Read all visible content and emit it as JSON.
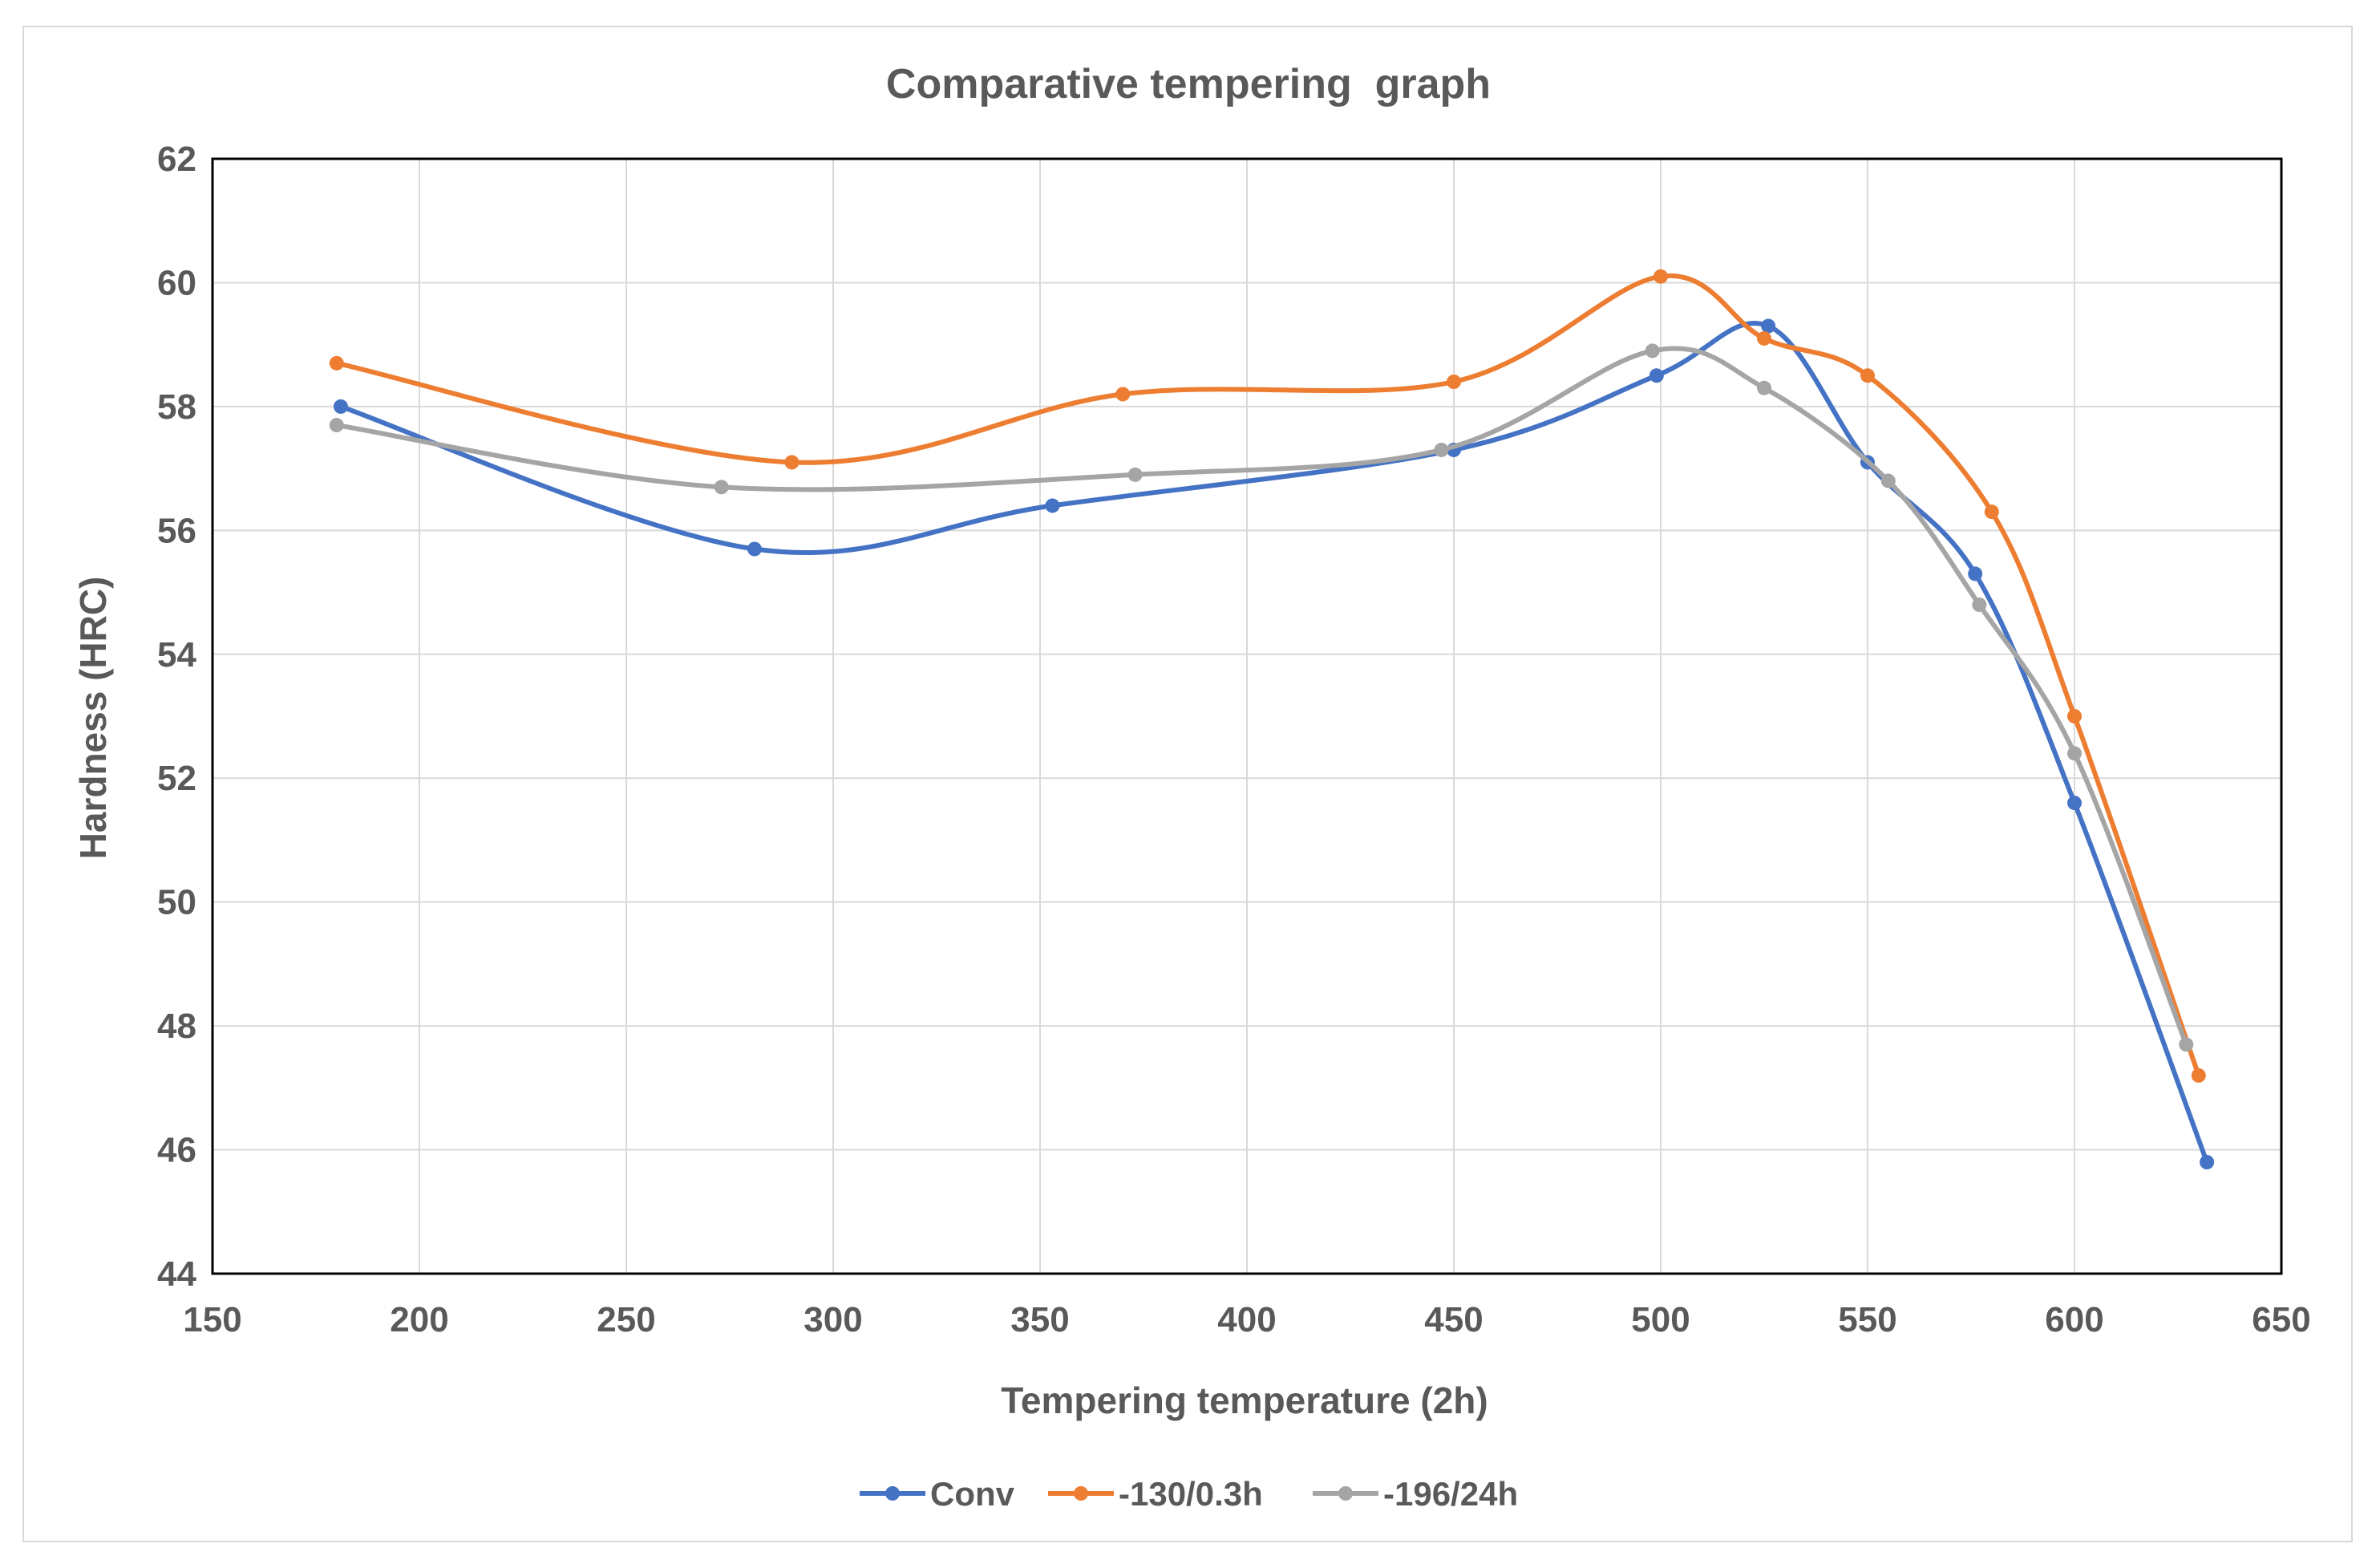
{
  "chart_data": {
    "type": "line",
    "title": "Comparative tempering  graph",
    "xlabel": "Tempering temperature (2h)",
    "ylabel": "Hardness (HRC)",
    "xlim": [
      150,
      650
    ],
    "ylim": [
      44,
      62
    ],
    "xticks": [
      150,
      200,
      250,
      300,
      350,
      400,
      450,
      500,
      550,
      600,
      650
    ],
    "yticks": [
      44,
      46,
      48,
      50,
      52,
      54,
      56,
      58,
      60,
      62
    ],
    "grid": true,
    "legend_position": "bottom",
    "smooth": true,
    "series": [
      {
        "name": "Conv",
        "color": "#4472c4",
        "points": [
          [
            181,
            58.0
          ],
          [
            281,
            55.7
          ],
          [
            353,
            56.4
          ],
          [
            450,
            57.3
          ],
          [
            499,
            58.5
          ],
          [
            526,
            59.3
          ],
          [
            550,
            57.1
          ],
          [
            576,
            55.3
          ],
          [
            600,
            51.6
          ],
          [
            632,
            45.8
          ]
        ]
      },
      {
        "name": "-130/0.3h",
        "color": "#ed7d31",
        "points": [
          [
            180,
            58.7
          ],
          [
            290,
            57.1
          ],
          [
            370,
            58.2
          ],
          [
            450,
            58.4
          ],
          [
            500,
            60.1
          ],
          [
            525,
            59.1
          ],
          [
            550,
            58.5
          ],
          [
            580,
            56.3
          ],
          [
            600,
            53.0
          ],
          [
            630,
            47.2
          ]
        ]
      },
      {
        "name": "-196/24h",
        "color": "#a5a5a5",
        "points": [
          [
            180,
            57.7
          ],
          [
            273,
            56.7
          ],
          [
            373,
            56.9
          ],
          [
            447,
            57.3
          ],
          [
            498,
            58.9
          ],
          [
            525,
            58.3
          ],
          [
            555,
            56.8
          ],
          [
            577,
            54.8
          ],
          [
            600,
            52.4
          ],
          [
            627,
            47.7
          ]
        ]
      }
    ]
  }
}
